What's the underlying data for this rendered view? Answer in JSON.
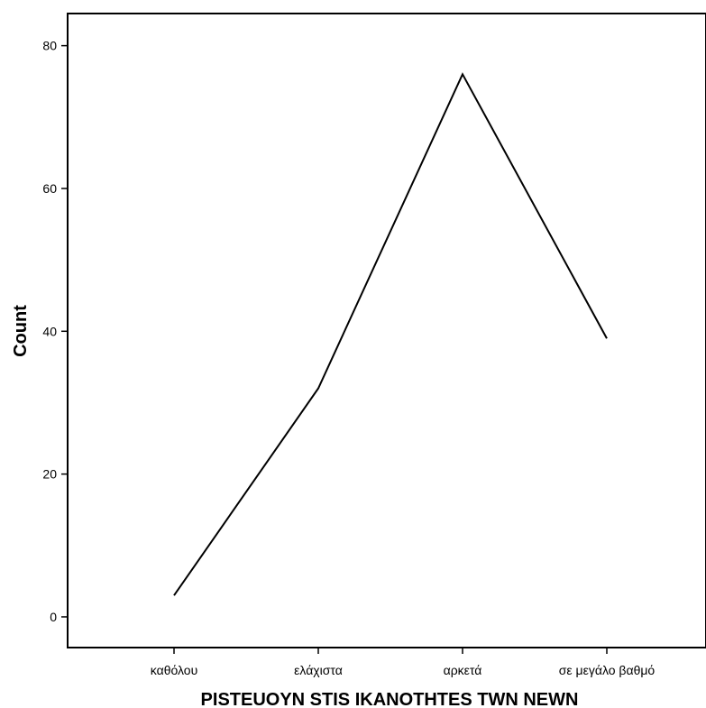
{
  "chart_data": {
    "type": "line",
    "title": "",
    "xlabel": "PISTEUOYN STIS IKANOTHTES TWN NEWN",
    "ylabel": "Count",
    "categories": [
      "καθόλου",
      "ελάχιστα",
      "αρκετά",
      "σε μεγάλο βαθμό"
    ],
    "series": [
      {
        "values": [
          3,
          32,
          76,
          39
        ]
      }
    ],
    "ylim": [
      -4.3,
      84.5
    ],
    "yticks": [
      0,
      20,
      40,
      60,
      80
    ],
    "grid": false,
    "colors": {
      "line": "#000000",
      "axis": "#000000",
      "background": "#ffffff"
    }
  }
}
